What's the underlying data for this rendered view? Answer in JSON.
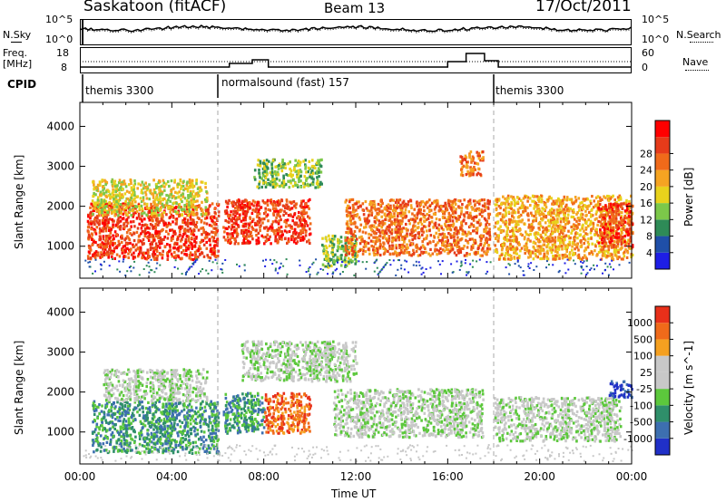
{
  "header": {
    "station": "Saskatoon (fitACF)",
    "beam": "Beam 13",
    "date": "17/Oct/2011"
  },
  "ctrl": {
    "nsky_label": "N.Sky",
    "nsky_ticks": [
      "10^5",
      "10^0"
    ],
    "nsearch_label": "N.Search",
    "nsearch_ticks": [
      "10^5",
      "10^0"
    ],
    "freq_label_1": "Freq.",
    "freq_label_2": "[MHz]",
    "freq_ticks": [
      "18",
      "8"
    ],
    "nave_label": "Nave",
    "nave_ticks": [
      "60",
      "0"
    ],
    "cpid_label": "CPID",
    "cpid_segments": [
      {
        "text": "themis 3300",
        "start_hour": 0
      },
      {
        "text": "normalsound (fast) 157",
        "start_hour": 6
      },
      {
        "text": "themis 3300",
        "start_hour": 18
      }
    ]
  },
  "chart_data": [
    {
      "type": "heatmap",
      "panel": "power",
      "ylabel": "Slant Range [km]",
      "xlabel": "",
      "ylim": [
        200,
        4600
      ],
      "xlim_hours": [
        0,
        24
      ],
      "yticks": [
        1000,
        2000,
        3000,
        4000
      ],
      "colorbar": {
        "label": "Power [dB]",
        "ticks": [
          "4",
          "8",
          "12",
          "16",
          "20",
          "24",
          "28"
        ],
        "colors": [
          "#1e1ee6",
          "#1f4fa8",
          "#2e8b57",
          "#7cc84a",
          "#e8d21c",
          "#f5a422",
          "#f06a1a",
          "#e63b1a",
          "#ff0000"
        ]
      },
      "regions": [
        {
          "h0": 0.3,
          "h1": 6.0,
          "r0": 700,
          "r1": 2100,
          "level": 7
        },
        {
          "h0": 0.5,
          "h1": 5.5,
          "r0": 1800,
          "r1": 2700,
          "level": 4
        },
        {
          "h0": 6.2,
          "h1": 10.0,
          "r0": 1100,
          "r1": 2200,
          "level": 7
        },
        {
          "h0": 7.5,
          "h1": 10.5,
          "r0": 2500,
          "r1": 3200,
          "level": 3
        },
        {
          "h0": 10.5,
          "h1": 12.0,
          "r0": 500,
          "r1": 1300,
          "level": 3
        },
        {
          "h0": 11.5,
          "h1": 17.8,
          "r0": 800,
          "r1": 2200,
          "level": 6
        },
        {
          "h0": 16.5,
          "h1": 17.5,
          "r0": 2800,
          "r1": 3400,
          "level": 6
        },
        {
          "h0": 18.0,
          "h1": 24.0,
          "r0": 700,
          "r1": 2300,
          "level": 5
        },
        {
          "h0": 22.5,
          "h1": 24.0,
          "r0": 1000,
          "r1": 2100,
          "level": 7
        }
      ]
    },
    {
      "type": "heatmap",
      "panel": "velocity",
      "ylabel": "Slant Range [km]",
      "xlabel": "Time UT",
      "ylim": [
        200,
        4600
      ],
      "xlim_hours": [
        0,
        24
      ],
      "yticks": [
        1000,
        2000,
        3000,
        4000
      ],
      "xticks": [
        "00:00",
        "04:00",
        "08:00",
        "12:00",
        "16:00",
        "20:00",
        "00:00"
      ],
      "colorbar": {
        "label": "Velocity [m s^-1]",
        "ticks": [
          "1000",
          "500",
          "100",
          "25",
          "-25",
          "-100",
          "-500",
          "-1000"
        ],
        "colors": [
          "#2030c8",
          "#3d6fb0",
          "#2f8f6a",
          "#5cc83c",
          "#c8c8c8",
          "#c8c8c8",
          "#f5a020",
          "#f06a1a",
          "#e8301a"
        ]
      },
      "regions": [
        {
          "h0": 0.5,
          "h1": 6.0,
          "r0": 500,
          "r1": 1800,
          "level": 2
        },
        {
          "h0": 1.0,
          "h1": 5.5,
          "r0": 1800,
          "r1": 2600,
          "level": 4
        },
        {
          "h0": 6.2,
          "h1": 8.0,
          "r0": 1000,
          "r1": 2000,
          "level": 2
        },
        {
          "h0": 8.0,
          "h1": 10.0,
          "r0": 1000,
          "r1": 2000,
          "level": 7
        },
        {
          "h0": 7.0,
          "h1": 12.0,
          "r0": 2300,
          "r1": 3300,
          "level": 4
        },
        {
          "h0": 11.0,
          "h1": 17.5,
          "r0": 900,
          "r1": 2100,
          "level": 4
        },
        {
          "h0": 18.0,
          "h1": 23.5,
          "r0": 800,
          "r1": 1900,
          "level": 4
        },
        {
          "h0": 23.0,
          "h1": 24.0,
          "r0": 1900,
          "r1": 2300,
          "level": 0
        }
      ]
    }
  ]
}
